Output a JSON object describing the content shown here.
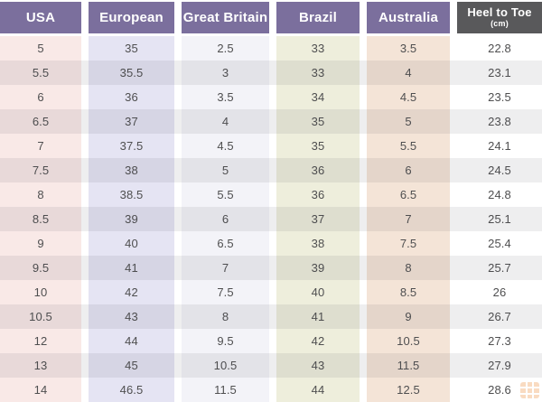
{
  "chart_data": {
    "type": "table",
    "columns": [
      {
        "label": "USA",
        "sublabel": ""
      },
      {
        "label": "European",
        "sublabel": ""
      },
      {
        "label": "Great Britain",
        "sublabel": ""
      },
      {
        "label": "Brazil",
        "sublabel": ""
      },
      {
        "label": "Australia",
        "sublabel": ""
      },
      {
        "label": "Heel to Toe",
        "sublabel": "(cm)"
      }
    ],
    "rows": [
      [
        "5",
        "35",
        "2.5",
        "33",
        "3.5",
        "22.8"
      ],
      [
        "5.5",
        "35.5",
        "3",
        "33",
        "4",
        "23.1"
      ],
      [
        "6",
        "36",
        "3.5",
        "34",
        "4.5",
        "23.5"
      ],
      [
        "6.5",
        "37",
        "4",
        "35",
        "5",
        "23.8"
      ],
      [
        "7",
        "37.5",
        "4.5",
        "35",
        "5.5",
        "24.1"
      ],
      [
        "7.5",
        "38",
        "5",
        "36",
        "6",
        "24.5"
      ],
      [
        "8",
        "38.5",
        "5.5",
        "36",
        "6.5",
        "24.8"
      ],
      [
        "8.5",
        "39",
        "6",
        "37",
        "7",
        "25.1"
      ],
      [
        "9",
        "40",
        "6.5",
        "38",
        "7.5",
        "25.4"
      ],
      [
        "9.5",
        "41",
        "7",
        "39",
        "8",
        "25.7"
      ],
      [
        "10",
        "42",
        "7.5",
        "40",
        "8.5",
        "26"
      ],
      [
        "10.5",
        "43",
        "8",
        "41",
        "9",
        "26.7"
      ],
      [
        "12",
        "44",
        "9.5",
        "42",
        "10.5",
        "27.3"
      ],
      [
        "13",
        "45",
        "10.5",
        "43",
        "11.5",
        "27.9"
      ],
      [
        "14",
        "46.5",
        "11.5",
        "44",
        "12.5",
        "28.6"
      ]
    ]
  },
  "style": {
    "header_bg": "#7b6f9d",
    "header_last_bg": "#59595b",
    "header_text": "#ffffff",
    "column_bgs": [
      "#f9e9e7",
      "#e5e4f3",
      "#f3f3f8",
      "#eeeedc",
      "#f4e4d7",
      "#ffffff"
    ],
    "cell_text": "#4f4f50",
    "watermark_color": "#ef9340"
  },
  "watermark": {
    "icon": "grid-logo"
  }
}
